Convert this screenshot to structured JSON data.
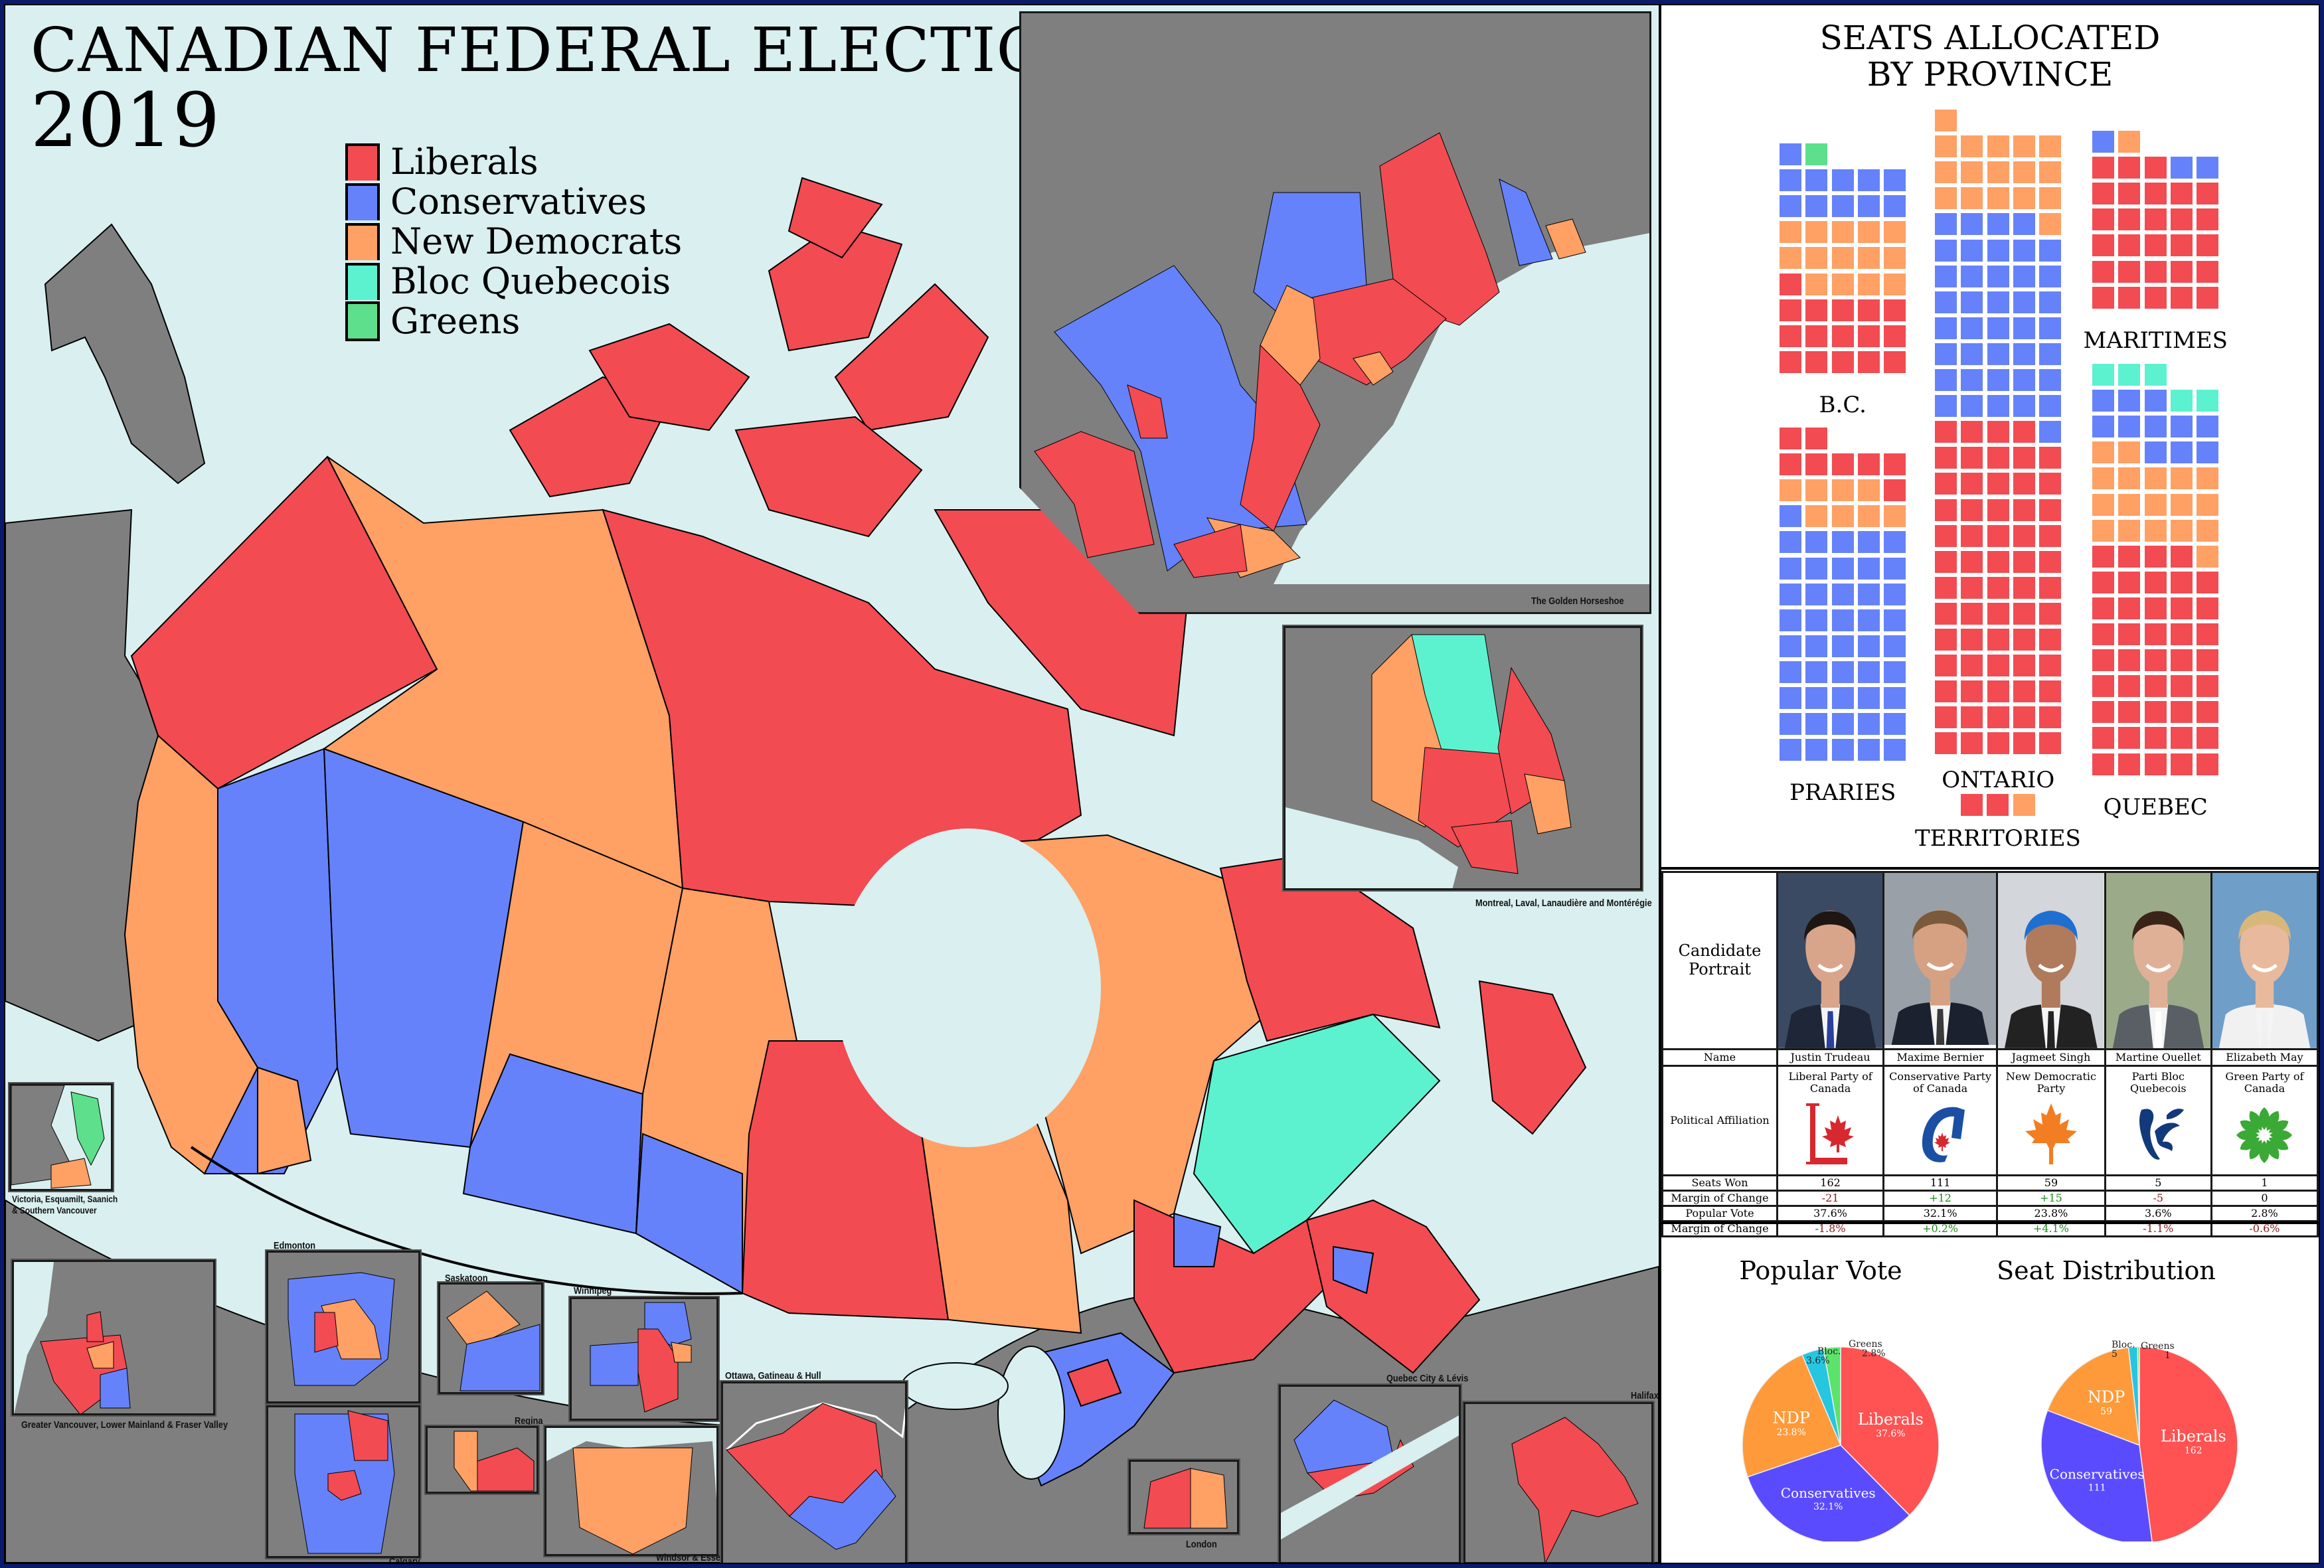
{
  "title": "CANADIAN FEDERAL ELECTION",
  "year": "2019",
  "colors": {
    "liberal": "#f24b52",
    "conservative": "#6582fb",
    "ndp": "#ffa065",
    "bloc": "#5df2cf",
    "green": "#5ddf8c",
    "water": "#d9eff0",
    "land_other": "#7f7f7f",
    "frame": "#0b1a6b"
  },
  "legend": [
    {
      "label": "Liberals",
      "color": "#f24b52"
    },
    {
      "label": "Conservatives",
      "color": "#6582fb"
    },
    {
      "label": "New Democrats",
      "color": "#ffa065"
    },
    {
      "label": "Bloc Quebecois",
      "color": "#5df2cf"
    },
    {
      "label": "Greens",
      "color": "#5ddf8c"
    }
  ],
  "insets": {
    "golden_horseshoe": "The Golden Horseshoe",
    "montreal": "Montreal, Laval, Lanaudière and Montérégie",
    "victoria": "Victoria, Esquamilt, Saanich & Southern Vancouver",
    "vancouver": "Greater Vancouver, Lower Mainland & Fraser Valley",
    "edmonton": "Edmonton",
    "calgary": "Calgary",
    "saskatoon": "Saskatoon",
    "regina": "Regina",
    "winnipeg": "Winnipeg",
    "windsor": "Windsor & Essex",
    "ottawa": "Ottawa, Gatineau & Hull",
    "london": "London",
    "quebec_city": "Quebec City & Lévis",
    "halifax": "Halifax"
  },
  "waffle": {
    "title_line1": "SEATS ALLOCATED",
    "title_line2": "BY PROVINCE",
    "regions": [
      {
        "name": "B.C.",
        "seats": {
          "liberal": 16,
          "conservative": 11,
          "ndp": 14,
          "bloc": 0,
          "green": 1
        },
        "rows_top_to_bottom": [
          [
            "C",
            "G"
          ],
          [
            "C",
            "C",
            "C",
            "C",
            "C"
          ],
          [
            "C",
            "C",
            "C",
            "C",
            "C"
          ],
          [
            "N",
            "N",
            "N",
            "N",
            "N"
          ],
          [
            "N",
            "N",
            "N",
            "N",
            "N"
          ],
          [
            "L",
            "N",
            "N",
            "N",
            "N"
          ],
          [
            "L",
            "L",
            "L",
            "L",
            "L"
          ],
          [
            "L",
            "L",
            "L",
            "L",
            "L"
          ],
          [
            "L",
            "L",
            "L",
            "L",
            "L"
          ]
        ]
      },
      {
        "name": "PRARIES",
        "seats": {
          "liberal": 8,
          "conservative": 46,
          "ndp": 8,
          "bloc": 0,
          "green": 0
        },
        "rows_top_to_bottom": [
          [
            "L",
            "L"
          ],
          [
            "L",
            "L",
            "L",
            "L",
            "L"
          ],
          [
            "N",
            "N",
            "N",
            "N",
            "L"
          ],
          [
            "C",
            "N",
            "N",
            "N",
            "N"
          ],
          [
            "C",
            "C",
            "C",
            "C",
            "C"
          ],
          [
            "C",
            "C",
            "C",
            "C",
            "C"
          ],
          [
            "C",
            "C",
            "C",
            "C",
            "C"
          ],
          [
            "C",
            "C",
            "C",
            "C",
            "C"
          ],
          [
            "C",
            "C",
            "C",
            "C",
            "C"
          ],
          [
            "C",
            "C",
            "C",
            "C",
            "C"
          ],
          [
            "C",
            "C",
            "C",
            "C",
            "C"
          ],
          [
            "C",
            "C",
            "C",
            "C",
            "C"
          ],
          [
            "C",
            "C",
            "C",
            "C",
            "C"
          ]
        ]
      },
      {
        "name": "ONTARIO",
        "seats": {
          "liberal": 64,
          "conservative": 40,
          "ndp": 17,
          "bloc": 0,
          "green": 0
        },
        "rows_top_to_bottom": [
          [
            "N"
          ],
          [
            "N",
            "N",
            "N",
            "N",
            "N"
          ],
          [
            "N",
            "N",
            "N",
            "N",
            "N"
          ],
          [
            "N",
            "N",
            "N",
            "N",
            "N"
          ],
          [
            "C",
            "C",
            "C",
            "C",
            "N"
          ],
          [
            "C",
            "C",
            "C",
            "C",
            "C"
          ],
          [
            "C",
            "C",
            "C",
            "C",
            "C"
          ],
          [
            "C",
            "C",
            "C",
            "C",
            "C"
          ],
          [
            "C",
            "C",
            "C",
            "C",
            "C"
          ],
          [
            "C",
            "C",
            "C",
            "C",
            "C"
          ],
          [
            "C",
            "C",
            "C",
            "C",
            "C"
          ],
          [
            "C",
            "C",
            "C",
            "C",
            "C"
          ],
          [
            "L",
            "L",
            "L",
            "L",
            "C"
          ],
          [
            "L",
            "L",
            "L",
            "L",
            "L"
          ],
          [
            "L",
            "L",
            "L",
            "L",
            "L"
          ],
          [
            "L",
            "L",
            "L",
            "L",
            "L"
          ],
          [
            "L",
            "L",
            "L",
            "L",
            "L"
          ],
          [
            "L",
            "L",
            "L",
            "L",
            "L"
          ],
          [
            "L",
            "L",
            "L",
            "L",
            "L"
          ],
          [
            "L",
            "L",
            "L",
            "L",
            "L"
          ],
          [
            "L",
            "L",
            "L",
            "L",
            "L"
          ],
          [
            "L",
            "L",
            "L",
            "L",
            "L"
          ],
          [
            "L",
            "L",
            "L",
            "L",
            "L"
          ],
          [
            "L",
            "L",
            "L",
            "L",
            "L"
          ],
          [
            "L",
            "L",
            "L",
            "L",
            "L"
          ]
        ]
      },
      {
        "name": "MARITIMES",
        "seats": {
          "liberal": 28,
          "conservative": 3,
          "ndp": 1,
          "bloc": 0,
          "green": 0
        },
        "rows_top_to_bottom": [
          [
            "C",
            "N"
          ],
          [
            "L",
            "L",
            "L",
            "C",
            "C"
          ],
          [
            "L",
            "L",
            "L",
            "L",
            "L"
          ],
          [
            "L",
            "L",
            "L",
            "L",
            "L"
          ],
          [
            "L",
            "L",
            "L",
            "L",
            "L"
          ],
          [
            "L",
            "L",
            "L",
            "L",
            "L"
          ],
          [
            "L",
            "L",
            "L",
            "L",
            "L"
          ]
        ]
      },
      {
        "name": "QUEBEC",
        "seats": {
          "liberal": 44,
          "conservative": 11,
          "ndp": 18,
          "bloc": 5,
          "green": 0
        },
        "rows_top_to_bottom": [
          [
            "B",
            "B",
            "B"
          ],
          [
            "C",
            "C",
            "C",
            "B",
            "B"
          ],
          [
            "C",
            "C",
            "C",
            "C",
            "C"
          ],
          [
            "N",
            "N",
            "C",
            "C",
            "C"
          ],
          [
            "N",
            "N",
            "N",
            "N",
            "N"
          ],
          [
            "N",
            "N",
            "N",
            "N",
            "N"
          ],
          [
            "N",
            "N",
            "N",
            "N",
            "N"
          ],
          [
            "L",
            "L",
            "L",
            "L",
            "N"
          ],
          [
            "L",
            "L",
            "L",
            "L",
            "L"
          ],
          [
            "L",
            "L",
            "L",
            "L",
            "L"
          ],
          [
            "L",
            "L",
            "L",
            "L",
            "L"
          ],
          [
            "L",
            "L",
            "L",
            "L",
            "L"
          ],
          [
            "L",
            "L",
            "L",
            "L",
            "L"
          ],
          [
            "L",
            "L",
            "L",
            "L",
            "L"
          ],
          [
            "L",
            "L",
            "L",
            "L",
            "L"
          ],
          [
            "L",
            "L",
            "L",
            "L",
            "L"
          ]
        ]
      },
      {
        "name": "TERRITORIES",
        "seats": {
          "liberal": 2,
          "conservative": 0,
          "ndp": 1,
          "bloc": 0,
          "green": 0
        },
        "rows_top_to_bottom": [
          [
            "L",
            "L",
            "N"
          ]
        ]
      }
    ]
  },
  "candidates": {
    "row_labels": {
      "portrait": "Candidate Portrait",
      "name": "Name",
      "affiliation": "Political Affiliation",
      "seats": "Seats Won",
      "seat_change": "Margin of Change",
      "vote": "Popular Vote",
      "vote_change": "Margin of Change"
    },
    "list": [
      {
        "name": "Justin Trudeau",
        "party": "Liberal Party of Canada",
        "logo": "liberal-logo",
        "seats": "162",
        "seat_change": "-21",
        "seat_change_sign": "neg",
        "vote": "37.6%",
        "vote_change": "-1.8%",
        "vote_change_sign": "neg",
        "portrait_bg": "#3b4a63",
        "skin": "#d9a58a",
        "hair": "#1d1613",
        "suit": "#1f2638",
        "tie": "#2a3f9e"
      },
      {
        "name": "Maxime Bernier",
        "party": "Conservative Party of Canada",
        "logo": "conservative-logo",
        "seats": "111",
        "seat_change": "+12",
        "seat_change_sign": "pos",
        "vote": "32.1%",
        "vote_change": "+0.2%",
        "vote_change_sign": "pos",
        "portrait_bg": "#9aa0a8",
        "skin": "#d6a182",
        "hair": "#7a5a3a",
        "suit": "#1c2130",
        "tie": "#3a3a3a"
      },
      {
        "name": "Jagmeet Singh",
        "party": "New Democratic Party",
        "logo": "ndp-logo",
        "seats": "59",
        "seat_change": "+15",
        "seat_change_sign": "pos",
        "vote": "23.8%",
        "vote_change": "+4.1%",
        "vote_change_sign": "pos",
        "portrait_bg": "#d3d6da",
        "skin": "#b07a5c",
        "hair": "#1e6fd0",
        "suit": "#222",
        "tie": "#222"
      },
      {
        "name": "Martine Ouellet",
        "party": "Parti Bloc Quebecois",
        "logo": "bloc-logo",
        "seats": "5",
        "seat_change": "-5",
        "seat_change_sign": "neg",
        "vote": "3.6%",
        "vote_change": "-1.1%",
        "vote_change_sign": "neg",
        "portrait_bg": "#9bab8a",
        "skin": "#e0b096",
        "hair": "#3a2418",
        "suit": "#5a5f66",
        "tie": "#fff"
      },
      {
        "name": "Elizabeth May",
        "party": "Green Party of Canada",
        "logo": "green-logo",
        "seats": "1",
        "seat_change": "0",
        "seat_change_sign": "none",
        "vote": "2.8%",
        "vote_change": "-0.6%",
        "vote_change_sign": "neg",
        "portrait_bg": "#6f9ec9",
        "skin": "#e8b99c",
        "hair": "#d8b77a",
        "suit": "#f1f1f1",
        "tie": "#f1f1f1"
      }
    ]
  },
  "chart_data": [
    {
      "type": "waffle",
      "title": "SEATS ALLOCATED BY PROVINCE",
      "categories": [
        "B.C.",
        "PRARIES",
        "ONTARIO",
        "MARITIMES",
        "QUEBEC",
        "TERRITORIES"
      ],
      "series": [
        {
          "name": "Liberals",
          "values": [
            16,
            8,
            64,
            28,
            44,
            2
          ]
        },
        {
          "name": "Conservatives",
          "values": [
            11,
            46,
            40,
            3,
            11,
            0
          ]
        },
        {
          "name": "New Democrats",
          "values": [
            14,
            8,
            17,
            1,
            18,
            1
          ]
        },
        {
          "name": "Bloc Quebecois",
          "values": [
            0,
            0,
            0,
            0,
            5,
            0
          ]
        },
        {
          "name": "Greens",
          "values": [
            1,
            0,
            0,
            0,
            0,
            0
          ]
        }
      ]
    },
    {
      "type": "pie",
      "title": "Popular Vote",
      "categories": [
        "Liberals",
        "Conservatives",
        "NDP",
        "Bloc.",
        "Greens"
      ],
      "values": [
        37.6,
        32.1,
        23.8,
        3.6,
        2.8
      ],
      "labels": [
        "37.6%",
        "32.1%",
        "23.8%",
        "3.6%",
        "2.8%"
      ],
      "colors": [
        "#ff5252",
        "#5b4bff",
        "#ff9a3a",
        "#26c6e0",
        "#5be36b"
      ]
    },
    {
      "type": "pie",
      "title": "Seat Distribution",
      "categories": [
        "Liberals",
        "Conservatives",
        "NDP",
        "Bloc.",
        "Greens"
      ],
      "values": [
        162,
        111,
        59,
        5,
        1
      ],
      "labels": [
        "162",
        "111",
        "59",
        "5",
        "1"
      ],
      "colors": [
        "#ff5252",
        "#5b4bff",
        "#ff9a3a",
        "#26c6e0",
        "#5be36b"
      ]
    }
  ]
}
